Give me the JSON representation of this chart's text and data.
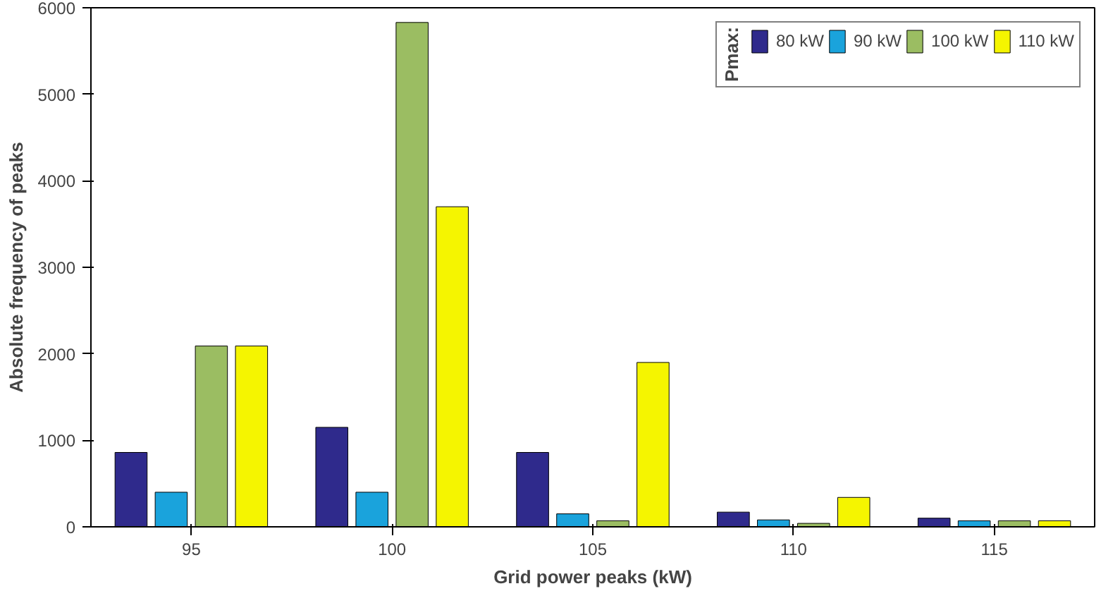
{
  "chart_data": {
    "type": "bar",
    "xlabel": "Grid power peaks (kW)",
    "ylabel": "Absolute frequency of peaks",
    "legend_title": "Pmax:",
    "categories": [
      "95",
      "100",
      "105",
      "110",
      "115"
    ],
    "series": [
      {
        "name": "80 kW",
        "color": "#2f2a8c",
        "values": [
          860,
          1150,
          860,
          170,
          100
        ]
      },
      {
        "name": "90 kW",
        "color": "#1aa3dc",
        "values": [
          400,
          400,
          150,
          80,
          70
        ]
      },
      {
        "name": "100 kW",
        "color": "#9bbd62",
        "values": [
          2090,
          5830,
          70,
          40,
          70
        ]
      },
      {
        "name": "110 kW",
        "color": "#f5f500",
        "values": [
          2090,
          3700,
          1900,
          340,
          70
        ]
      }
    ],
    "ylim": [
      0,
      6000
    ],
    "yticks": [
      0,
      1000,
      2000,
      3000,
      4000,
      5000,
      6000
    ],
    "grid": false,
    "legend": "top right"
  }
}
